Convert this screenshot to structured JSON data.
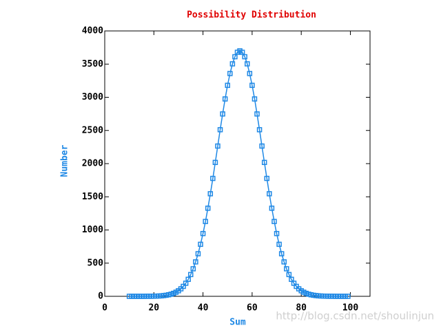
{
  "chart_data": {
    "type": "line",
    "title": "Possibility Distribution",
    "xlabel": "Sum",
    "ylabel": "Number",
    "watermark": "http://blog.csdn.net/shoulinjun",
    "x": [
      10,
      11,
      12,
      13,
      14,
      15,
      16,
      17,
      18,
      19,
      20,
      21,
      22,
      23,
      24,
      25,
      26,
      27,
      28,
      29,
      30,
      31,
      32,
      33,
      34,
      35,
      36,
      37,
      38,
      39,
      40,
      41,
      42,
      43,
      44,
      45,
      46,
      47,
      48,
      49,
      50,
      51,
      52,
      53,
      54,
      55,
      56,
      57,
      58,
      59,
      60,
      61,
      62,
      63,
      64,
      65,
      66,
      67,
      68,
      69,
      70,
      71,
      72,
      73,
      74,
      75,
      76,
      77,
      78,
      79,
      80,
      81,
      82,
      83,
      84,
      85,
      86,
      87,
      88,
      89,
      90,
      91,
      92,
      93,
      94,
      95,
      96,
      97,
      98,
      99
    ],
    "series": [
      {
        "name": "Number",
        "color": "#1e88e5",
        "values": [
          0,
          0,
          0,
          0,
          0,
          0,
          0,
          1,
          1,
          1,
          2,
          3,
          5,
          7,
          11,
          16,
          23,
          32,
          45,
          62,
          84,
          113,
          150,
          197,
          256,
          328,
          415,
          519,
          642,
          784,
          946,
          1128,
          1328,
          1546,
          1777,
          2018,
          2265,
          2511,
          2749,
          2975,
          3180,
          3358,
          3504,
          3611,
          3678,
          3700,
          3678,
          3611,
          3504,
          3358,
          3180,
          2975,
          2749,
          2511,
          2265,
          2018,
          1777,
          1546,
          1328,
          1128,
          946,
          784,
          642,
          519,
          415,
          328,
          256,
          197,
          150,
          113,
          84,
          62,
          45,
          32,
          23,
          16,
          11,
          7,
          5,
          3,
          2,
          1,
          1,
          1,
          0,
          0,
          0,
          0,
          0,
          0
        ]
      }
    ],
    "xlim": [
      0,
      108
    ],
    "xticks": [
      0,
      20,
      40,
      60,
      80,
      100
    ],
    "ylim": [
      0,
      4000
    ],
    "yticks": [
      0,
      500,
      1000,
      1500,
      2000,
      2500,
      3000,
      3500,
      4000
    ]
  }
}
